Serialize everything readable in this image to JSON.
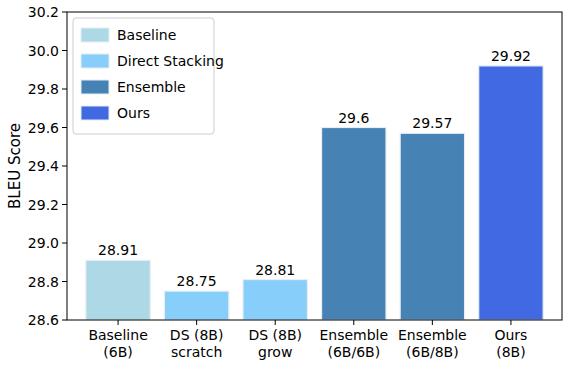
{
  "chart_data": {
    "type": "bar",
    "y_label": "BLEU Score",
    "categories": [
      "Baseline\n(6B)",
      "DS (8B)\nscratch",
      "DS (8B)\ngrow",
      "Ensemble\n(6B/6B)",
      "Ensemble\n(6B/8B)",
      "Ours\n(8B)"
    ],
    "series": [
      {
        "name": "Baseline",
        "color": "#add8e6",
        "values": [
          28.91,
          null,
          null,
          null,
          null,
          null
        ]
      },
      {
        "name": "Direct Stacking",
        "color": "#87cefa",
        "values": [
          null,
          28.75,
          28.81,
          null,
          null,
          null
        ]
      },
      {
        "name": "Ensemble",
        "color": "#4682b4",
        "values": [
          null,
          null,
          null,
          29.6,
          29.57,
          null
        ]
      },
      {
        "name": "Ours",
        "color": "#4169e1",
        "values": [
          null,
          null,
          null,
          null,
          null,
          29.92
        ]
      }
    ],
    "ylim": [
      28.6,
      30.2
    ],
    "yticks": [
      28.6,
      28.8,
      {
        "value": 29,
        "label": "29.0"
      },
      29.2,
      29.4,
      29.6,
      29.8,
      {
        "value": 30,
        "label": "30.0"
      },
      30.2
    ],
    "grid": false,
    "legend": "upper left",
    "data_labels": true
  }
}
